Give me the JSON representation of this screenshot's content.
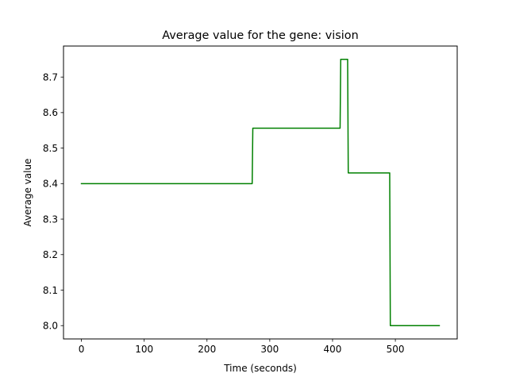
{
  "chart_data": {
    "type": "line",
    "title": "Average value for the gene: vision",
    "xlabel": "Time (seconds)",
    "ylabel": "Average value",
    "xlim": [
      -28.5,
      598.5
    ],
    "ylim": [
      7.9625,
      8.7875
    ],
    "xticks": [
      0,
      100,
      200,
      300,
      400,
      500
    ],
    "yticks": [
      8.0,
      8.1,
      8.2,
      8.3,
      8.4,
      8.5,
      8.6,
      8.7
    ],
    "ytick_labels": [
      "8.0",
      "8.1",
      "8.2",
      "8.3",
      "8.4",
      "8.5",
      "8.6",
      "8.7"
    ],
    "xtick_labels": [
      "0",
      "100",
      "200",
      "300",
      "400",
      "500"
    ],
    "grid": false,
    "series": [
      {
        "color": "#008000",
        "x": [
          0,
          272,
          273,
          412,
          413,
          424,
          425,
          491,
          492,
          570
        ],
        "y": [
          8.4,
          8.4,
          8.556,
          8.556,
          8.75,
          8.75,
          8.43,
          8.43,
          8.0,
          8.0
        ]
      }
    ]
  }
}
